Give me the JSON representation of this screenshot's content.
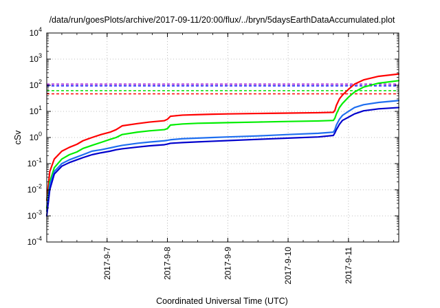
{
  "chart_data": {
    "type": "line",
    "title": "/data/run/goesPlots/archive/2017-09-11/20:00/flux/../bryn/5daysEarthDataAccumulated.plot",
    "xlabel": "Coordinated Universal Time (UTC)",
    "ylabel": "cSv",
    "x_scale": "date",
    "y_scale": "log",
    "xlim": [
      "2017-09-06 00:00",
      "2017-09-11 20:00"
    ],
    "ylim": [
      0.0001,
      10000
    ],
    "grid": true,
    "x_ticks": [
      "2017-9-7",
      "2017-9-8",
      "2017-9-9",
      "2017-9-10",
      "2017-9-11"
    ],
    "y_ticks": [
      {
        "value": 0.0001,
        "base": "10",
        "exp": "-4"
      },
      {
        "value": 0.001,
        "base": "10",
        "exp": "-3"
      },
      {
        "value": 0.01,
        "base": "10",
        "exp": "-2"
      },
      {
        "value": 0.1,
        "base": "10",
        "exp": "-1"
      },
      {
        "value": 1,
        "base": "10",
        "exp": "0"
      },
      {
        "value": 10,
        "base": "10",
        "exp": "1"
      },
      {
        "value": 100,
        "base": "10",
        "exp": "2"
      },
      {
        "value": 1000,
        "base": "10",
        "exp": "3"
      },
      {
        "value": 10000,
        "base": "10",
        "exp": "4"
      }
    ],
    "thresholds": [
      {
        "value": 110,
        "color": "#9400d3"
      },
      {
        "value": 95,
        "color": "#0000ff"
      },
      {
        "value": 62,
        "color": "#00dd00"
      },
      {
        "value": 47,
        "color": "#ff0000"
      }
    ],
    "series": [
      {
        "color": "#ff0000",
        "points": [
          [
            "2017-09-06 00:00",
            0.004
          ],
          [
            "2017-09-06 01:12",
            0.05
          ],
          [
            "2017-09-06 03:00",
            0.15
          ],
          [
            "2017-09-06 06:00",
            0.3
          ],
          [
            "2017-09-06 09:00",
            0.42
          ],
          [
            "2017-09-06 12:00",
            0.55
          ],
          [
            "2017-09-06 14:24",
            0.75
          ],
          [
            "2017-09-06 18:00",
            1.0
          ],
          [
            "2017-09-06 21:36",
            1.3
          ],
          [
            "2017-09-07 01:12",
            1.6
          ],
          [
            "2017-09-07 03:36",
            2.0
          ],
          [
            "2017-09-07 06:00",
            2.8
          ],
          [
            "2017-09-07 12:00",
            3.4
          ],
          [
            "2017-09-07 16:48",
            3.9
          ],
          [
            "2017-09-07 22:48",
            4.4
          ],
          [
            "2017-09-08 00:00",
            5.0
          ],
          [
            "2017-09-08 01:12",
            6.5
          ],
          [
            "2017-09-08 06:00",
            7.2
          ],
          [
            "2017-09-08 12:00",
            7.5
          ],
          [
            "2017-09-08 18:00",
            7.8
          ],
          [
            "2017-09-09 00:00",
            8.0
          ],
          [
            "2017-09-09 12:00",
            8.3
          ],
          [
            "2017-09-10 00:00",
            8.6
          ],
          [
            "2017-09-10 12:00",
            8.9
          ],
          [
            "2017-09-10 18:00",
            9.2
          ],
          [
            "2017-09-10 18:36",
            11
          ],
          [
            "2017-09-10 19:12",
            17
          ],
          [
            "2017-09-10 20:24",
            30
          ],
          [
            "2017-09-10 21:36",
            42
          ],
          [
            "2017-09-11 00:00",
            70
          ],
          [
            "2017-09-11 02:24",
            110
          ],
          [
            "2017-09-11 06:00",
            160
          ],
          [
            "2017-09-11 12:00",
            220
          ],
          [
            "2017-09-11 20:00",
            270
          ]
        ]
      },
      {
        "color": "#00ee00",
        "points": [
          [
            "2017-09-06 00:00",
            0.002
          ],
          [
            "2017-09-06 01:12",
            0.02
          ],
          [
            "2017-09-06 03:00",
            0.07
          ],
          [
            "2017-09-06 06:00",
            0.15
          ],
          [
            "2017-09-06 09:00",
            0.22
          ],
          [
            "2017-09-06 12:00",
            0.28
          ],
          [
            "2017-09-06 14:24",
            0.38
          ],
          [
            "2017-09-06 18:00",
            0.5
          ],
          [
            "2017-09-06 21:36",
            0.65
          ],
          [
            "2017-09-07 01:12",
            0.85
          ],
          [
            "2017-09-07 03:36",
            1.0
          ],
          [
            "2017-09-07 06:00",
            1.3
          ],
          [
            "2017-09-07 12:00",
            1.6
          ],
          [
            "2017-09-07 16:48",
            1.8
          ],
          [
            "2017-09-07 22:48",
            2.0
          ],
          [
            "2017-09-08 00:00",
            2.2
          ],
          [
            "2017-09-08 01:12",
            3.0
          ],
          [
            "2017-09-08 06:00",
            3.3
          ],
          [
            "2017-09-08 12:00",
            3.5
          ],
          [
            "2017-09-08 18:00",
            3.6
          ],
          [
            "2017-09-09 00:00",
            3.7
          ],
          [
            "2017-09-09 12:00",
            3.9
          ],
          [
            "2017-09-10 00:00",
            4.1
          ],
          [
            "2017-09-10 12:00",
            4.3
          ],
          [
            "2017-09-10 18:00",
            4.5
          ],
          [
            "2017-09-10 18:36",
            5.5
          ],
          [
            "2017-09-10 19:12",
            8
          ],
          [
            "2017-09-10 20:24",
            14
          ],
          [
            "2017-09-10 21:36",
            20
          ],
          [
            "2017-09-11 00:00",
            35
          ],
          [
            "2017-09-11 02:24",
            55
          ],
          [
            "2017-09-11 06:00",
            85
          ],
          [
            "2017-09-11 12:00",
            120
          ],
          [
            "2017-09-11 20:00",
            150
          ]
        ]
      },
      {
        "color": "#1e6ef0",
        "points": [
          [
            "2017-09-06 00:00",
            0.0015
          ],
          [
            "2017-09-06 01:12",
            0.015
          ],
          [
            "2017-09-06 03:00",
            0.05
          ],
          [
            "2017-09-06 06:00",
            0.1
          ],
          [
            "2017-09-06 09:00",
            0.14
          ],
          [
            "2017-09-06 12:00",
            0.18
          ],
          [
            "2017-09-06 14:24",
            0.22
          ],
          [
            "2017-09-06 18:00",
            0.3
          ],
          [
            "2017-09-06 21:36",
            0.34
          ],
          [
            "2017-09-07 01:12",
            0.4
          ],
          [
            "2017-09-07 03:36",
            0.45
          ],
          [
            "2017-09-07 06:00",
            0.5
          ],
          [
            "2017-09-07 12:00",
            0.6
          ],
          [
            "2017-09-07 16:48",
            0.67
          ],
          [
            "2017-09-07 22:48",
            0.75
          ],
          [
            "2017-09-08 00:00",
            0.78
          ],
          [
            "2017-09-08 01:12",
            0.82
          ],
          [
            "2017-09-08 06:00",
            0.9
          ],
          [
            "2017-09-08 12:00",
            0.95
          ],
          [
            "2017-09-08 18:00",
            1.0
          ],
          [
            "2017-09-09 00:00",
            1.05
          ],
          [
            "2017-09-09 12:00",
            1.15
          ],
          [
            "2017-09-10 00:00",
            1.3
          ],
          [
            "2017-09-10 12:00",
            1.45
          ],
          [
            "2017-09-10 18:00",
            1.6
          ],
          [
            "2017-09-10 18:36",
            2.0
          ],
          [
            "2017-09-10 19:12",
            3.0
          ],
          [
            "2017-09-10 20:24",
            5.0
          ],
          [
            "2017-09-10 21:36",
            7.0
          ],
          [
            "2017-09-11 00:00",
            10
          ],
          [
            "2017-09-11 02:24",
            14
          ],
          [
            "2017-09-11 06:00",
            18
          ],
          [
            "2017-09-11 12:00",
            22
          ],
          [
            "2017-09-11 20:00",
            26
          ]
        ]
      },
      {
        "color": "#0000cc",
        "points": [
          [
            "2017-09-06 00:00",
            0.001
          ],
          [
            "2017-09-06 01:12",
            0.01
          ],
          [
            "2017-09-06 03:00",
            0.04
          ],
          [
            "2017-09-06 06:00",
            0.08
          ],
          [
            "2017-09-06 09:00",
            0.11
          ],
          [
            "2017-09-06 12:00",
            0.14
          ],
          [
            "2017-09-06 14:24",
            0.17
          ],
          [
            "2017-09-06 18:00",
            0.22
          ],
          [
            "2017-09-06 21:36",
            0.26
          ],
          [
            "2017-09-07 01:12",
            0.3
          ],
          [
            "2017-09-07 03:36",
            0.34
          ],
          [
            "2017-09-07 06:00",
            0.37
          ],
          [
            "2017-09-07 12:00",
            0.43
          ],
          [
            "2017-09-07 16:48",
            0.48
          ],
          [
            "2017-09-07 22:48",
            0.53
          ],
          [
            "2017-09-08 00:00",
            0.56
          ],
          [
            "2017-09-08 01:12",
            0.6
          ],
          [
            "2017-09-08 06:00",
            0.64
          ],
          [
            "2017-09-08 12:00",
            0.68
          ],
          [
            "2017-09-08 18:00",
            0.72
          ],
          [
            "2017-09-09 00:00",
            0.76
          ],
          [
            "2017-09-09 12:00",
            0.85
          ],
          [
            "2017-09-10 00:00",
            0.95
          ],
          [
            "2017-09-10 12:00",
            1.05
          ],
          [
            "2017-09-10 18:00",
            1.2
          ],
          [
            "2017-09-10 18:36",
            1.5
          ],
          [
            "2017-09-10 19:12",
            2.0
          ],
          [
            "2017-09-10 20:24",
            3.2
          ],
          [
            "2017-09-10 21:36",
            4.5
          ],
          [
            "2017-09-11 00:00",
            6.0
          ],
          [
            "2017-09-11 02:24",
            8.0
          ],
          [
            "2017-09-11 06:00",
            10.5
          ],
          [
            "2017-09-11 12:00",
            12.5
          ],
          [
            "2017-09-11 20:00",
            14
          ]
        ]
      }
    ]
  }
}
